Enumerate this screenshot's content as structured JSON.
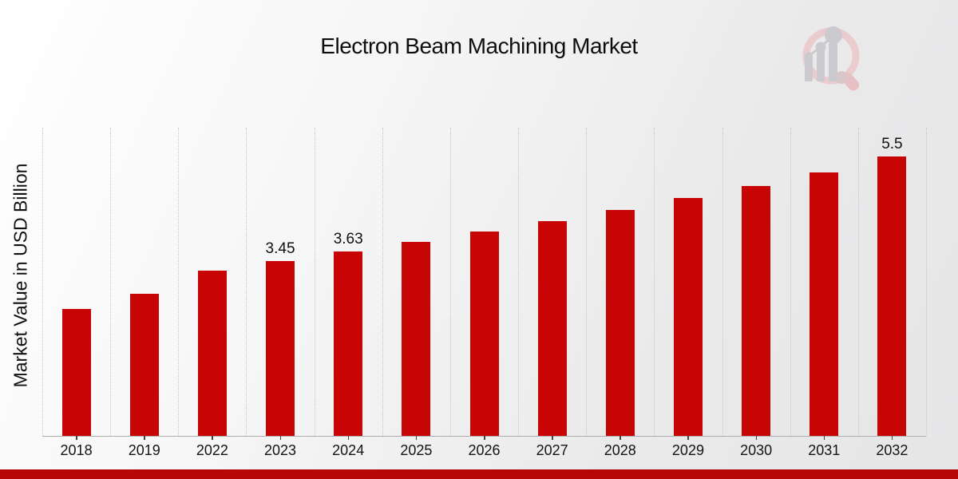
{
  "title": "Electron Beam Machining Market",
  "y_axis_label": "Market Value in USD Billion",
  "colors": {
    "bar": "#c70505",
    "banner": "#b50707",
    "gridline": "#c5c5c5",
    "axis": "#aeaeae",
    "logo_ring": "#ecc9cb",
    "logo_handle": "#e6bcbf",
    "logo_gray": "#c7c7cc"
  },
  "logo": {
    "name": "market-research-chart-watermark"
  },
  "chart_data": {
    "type": "bar",
    "title": "Electron Beam Machining Market",
    "xlabel": "",
    "ylabel": "Market Value in USD Billion",
    "categories": [
      "2018",
      "2019",
      "2022",
      "2023",
      "2024",
      "2025",
      "2026",
      "2027",
      "2028",
      "2029",
      "2030",
      "2031",
      "2032"
    ],
    "values": [
      2.5,
      2.8,
      3.26,
      3.45,
      3.63,
      3.82,
      4.02,
      4.23,
      4.45,
      4.68,
      4.93,
      5.19,
      5.5
    ],
    "data_labels": [
      "",
      "",
      "",
      "3.45",
      "3.63",
      "",
      "",
      "",
      "",
      "",
      "",
      "",
      "5.5"
    ],
    "ylim": [
      0,
      6.07
    ],
    "grid": "vertical-dotted",
    "legend": "none",
    "bar_color": "#c70505",
    "banner_color": "#b50707"
  }
}
